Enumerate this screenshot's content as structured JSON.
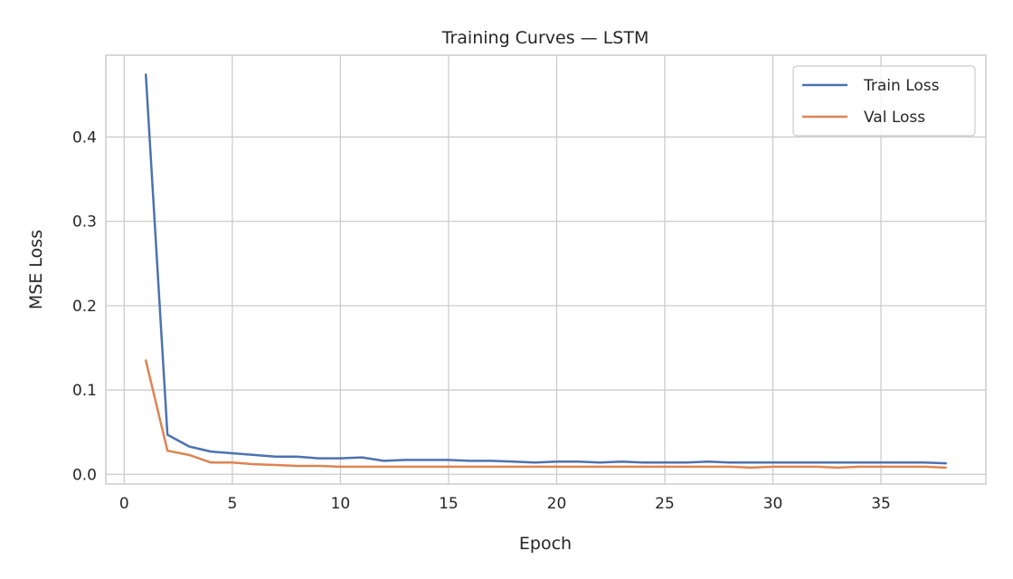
{
  "chart_data": {
    "type": "line",
    "title": "Training Curves — LSTM",
    "xlabel": "Epoch",
    "ylabel": "MSE Loss",
    "xlim": [
      -0.85,
      39.85
    ],
    "ylim": [
      -0.0115,
      0.497
    ],
    "xticks": [
      0,
      5,
      10,
      15,
      20,
      25,
      30,
      35
    ],
    "yticks": [
      0.0,
      0.1,
      0.2,
      0.3,
      0.4
    ],
    "ytick_labels": [
      "0.0",
      "0.1",
      "0.2",
      "0.3",
      "0.4"
    ],
    "grid": true,
    "legend_position": "top-right",
    "x": [
      1,
      2,
      3,
      4,
      5,
      6,
      7,
      8,
      9,
      10,
      11,
      12,
      13,
      14,
      15,
      16,
      17,
      18,
      19,
      20,
      21,
      22,
      23,
      24,
      25,
      26,
      27,
      28,
      29,
      30,
      31,
      32,
      33,
      34,
      35,
      36,
      37,
      38
    ],
    "series": [
      {
        "name": "Train Loss",
        "color": "#4c72b0",
        "values": [
          0.474,
          0.047,
          0.033,
          0.027,
          0.025,
          0.023,
          0.021,
          0.021,
          0.019,
          0.019,
          0.02,
          0.016,
          0.017,
          0.017,
          0.017,
          0.016,
          0.016,
          0.015,
          0.014,
          0.015,
          0.015,
          0.014,
          0.015,
          0.014,
          0.014,
          0.014,
          0.015,
          0.014,
          0.014,
          0.014,
          0.014,
          0.014,
          0.014,
          0.014,
          0.014,
          0.014,
          0.014,
          0.013
        ]
      },
      {
        "name": "Val Loss",
        "color": "#dd8452",
        "values": [
          0.135,
          0.028,
          0.023,
          0.014,
          0.014,
          0.012,
          0.011,
          0.01,
          0.01,
          0.009,
          0.009,
          0.009,
          0.009,
          0.009,
          0.009,
          0.009,
          0.009,
          0.009,
          0.009,
          0.009,
          0.009,
          0.009,
          0.009,
          0.009,
          0.009,
          0.009,
          0.009,
          0.009,
          0.008,
          0.009,
          0.009,
          0.009,
          0.008,
          0.009,
          0.009,
          0.009,
          0.009,
          0.008
        ]
      }
    ]
  }
}
